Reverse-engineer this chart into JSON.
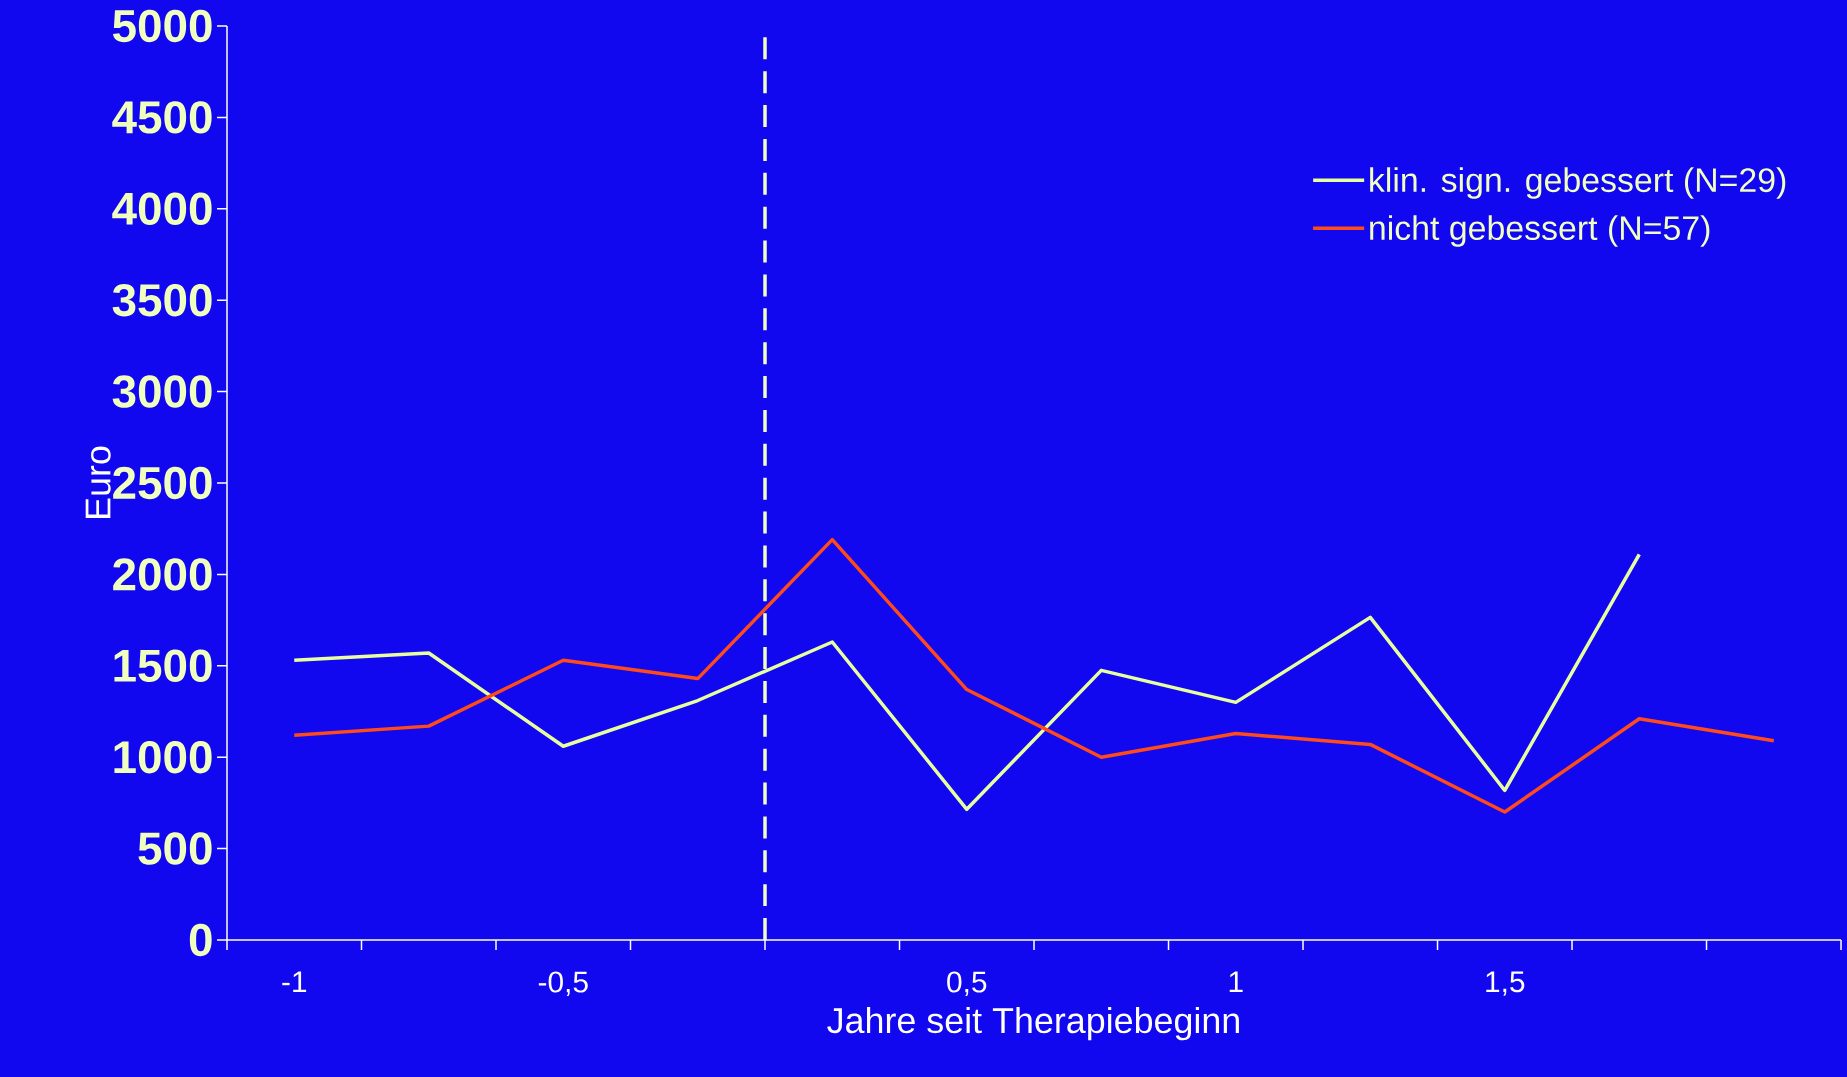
{
  "chart_data": {
    "type": "line",
    "xlabel": "Jahre seit Therapiebeginn",
    "ylabel": "Euro",
    "categories": [
      "-1",
      null,
      "-0,5",
      null,
      null,
      "0,5",
      null,
      "1",
      null,
      "1,5",
      null,
      null
    ],
    "series": [
      {
        "name": "klin. sign. gebessert (N=29)",
        "color": "#e8ffa0",
        "values": [
          1530,
          1570,
          1060,
          1310,
          1630,
          715,
          1475,
          1300,
          1765,
          818,
          2110,
          null
        ]
      },
      {
        "name": "nicht gebessert (N=57)",
        "color": "#ff4a1a",
        "values": [
          1120,
          1170,
          1530,
          1430,
          2190,
          1370,
          1000,
          1130,
          1070,
          700,
          1210,
          1090
        ]
      }
    ],
    "ylim": [
      0,
      5000
    ],
    "yticks": [
      0,
      500,
      1000,
      1500,
      2000,
      2500,
      3000,
      3500,
      4000,
      4500,
      5000
    ],
    "legend": "top right",
    "grid": false,
    "marker": "none",
    "line_style": "solid"
  }
}
